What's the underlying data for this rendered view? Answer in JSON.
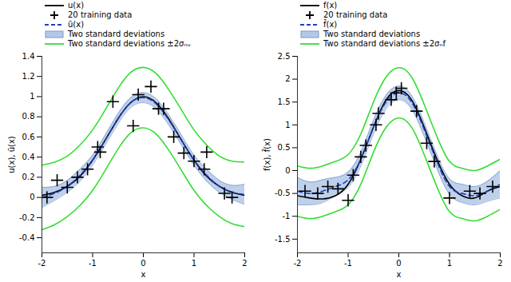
{
  "chart_data": [
    {
      "type": "line",
      "xlabel": "x",
      "ylabel": "u(x), ū(x)",
      "xlim": [
        -2,
        2
      ],
      "xticks": [
        -2,
        -1,
        0,
        1,
        2
      ],
      "ylim": [
        -0.55,
        1.4
      ],
      "yticks": [
        -0.4,
        -0.2,
        0,
        0.2,
        0.4,
        0.6,
        0.8,
        1,
        1.2,
        1.4
      ],
      "x": [
        -2,
        -1.75,
        -1.5,
        -1.25,
        -1,
        -0.75,
        -0.5,
        -0.25,
        0,
        0.25,
        0.5,
        0.75,
        1,
        1.25,
        1.5,
        1.75,
        2
      ],
      "series": [
        {
          "name": "u(x)",
          "type": "line",
          "color": "#000000",
          "line_style": "solid",
          "values": [
            0.02,
            0.05,
            0.11,
            0.21,
            0.37,
            0.57,
            0.78,
            0.94,
            1.0,
            0.94,
            0.78,
            0.57,
            0.37,
            0.21,
            0.11,
            0.05,
            0.02
          ]
        },
        {
          "name": "20 training data",
          "type": "scatter",
          "color": "#000000",
          "marker": "plus",
          "x": [
            -1.9,
            -1.7,
            -1.5,
            -1.3,
            -1.1,
            -0.9,
            -0.85,
            -0.6,
            -0.2,
            -0.1,
            0.15,
            0.3,
            0.4,
            0.6,
            0.8,
            1.0,
            1.25,
            1.2,
            1.6,
            1.75
          ],
          "values": [
            0.0,
            0.17,
            0.1,
            0.2,
            0.28,
            0.5,
            0.45,
            0.95,
            0.71,
            1.02,
            1.1,
            0.88,
            0.88,
            0.6,
            0.44,
            0.36,
            0.45,
            0.28,
            0.04,
            0.0
          ]
        },
        {
          "name": "ū(x)",
          "type": "line",
          "color": "#1f3fbf",
          "line_style": "dashed",
          "values": [
            0.0,
            0.04,
            0.11,
            0.22,
            0.37,
            0.57,
            0.78,
            0.94,
            0.99,
            0.93,
            0.77,
            0.57,
            0.37,
            0.22,
            0.11,
            0.05,
            0.03
          ]
        },
        {
          "name": "Two standard deviations",
          "type": "area",
          "color": "#b3c8e6",
          "lower": [
            -0.1,
            -0.03,
            0.05,
            0.16,
            0.32,
            0.52,
            0.73,
            0.89,
            0.94,
            0.88,
            0.72,
            0.52,
            0.32,
            0.16,
            0.05,
            -0.02,
            -0.07
          ],
          "upper": [
            0.1,
            0.11,
            0.17,
            0.28,
            0.42,
            0.62,
            0.83,
            0.99,
            1.04,
            0.98,
            0.82,
            0.62,
            0.42,
            0.28,
            0.17,
            0.12,
            0.13
          ]
        },
        {
          "name": "Two standard deviations ±2σₙᵤ",
          "type": "bounds",
          "color": "#33dd33",
          "lower": [
            -0.32,
            -0.27,
            -0.19,
            -0.08,
            0.07,
            0.27,
            0.48,
            0.64,
            0.69,
            0.63,
            0.47,
            0.27,
            0.07,
            -0.08,
            -0.19,
            -0.26,
            -0.29
          ],
          "upper": [
            0.32,
            0.35,
            0.41,
            0.52,
            0.67,
            0.87,
            1.08,
            1.24,
            1.29,
            1.23,
            1.07,
            0.87,
            0.67,
            0.52,
            0.41,
            0.36,
            0.35
          ]
        }
      ]
    },
    {
      "type": "line",
      "xlabel": "x",
      "ylabel": "f(x), f̄(x)",
      "xlim": [
        -2,
        2
      ],
      "xticks": [
        -2,
        -1,
        0,
        1,
        2
      ],
      "ylim": [
        -1.8,
        2.5
      ],
      "yticks": [
        -1.5,
        -1,
        -0.5,
        0,
        0.5,
        1,
        1.5,
        2,
        2.5
      ],
      "x": [
        -2,
        -1.75,
        -1.5,
        -1.25,
        -1,
        -0.75,
        -0.5,
        -0.25,
        0,
        0.25,
        0.5,
        0.75,
        1,
        1.25,
        1.5,
        1.75,
        2
      ],
      "series": [
        {
          "name": "f(x)",
          "type": "line",
          "color": "#000000",
          "line_style": "solid",
          "values": [
            -0.55,
            -0.6,
            -0.62,
            -0.55,
            -0.3,
            0.25,
            0.95,
            1.55,
            1.75,
            1.55,
            0.95,
            0.25,
            -0.3,
            -0.55,
            -0.6,
            -0.45,
            -0.35
          ]
        },
        {
          "name": "20 training data",
          "type": "scatter",
          "color": "#000000",
          "marker": "plus",
          "x": [
            -1.85,
            -1.6,
            -1.4,
            -1.2,
            -1.0,
            -0.9,
            -0.75,
            -0.65,
            -0.45,
            -0.4,
            -0.15,
            -0.05,
            0.05,
            0.35,
            0.55,
            0.7,
            1.0,
            1.4,
            1.6,
            1.85
          ],
          "values": [
            -0.45,
            -0.5,
            -0.35,
            -0.4,
            -0.65,
            -0.1,
            0.3,
            0.55,
            1.0,
            1.25,
            1.55,
            1.7,
            1.8,
            1.3,
            0.6,
            0.2,
            -0.6,
            -0.45,
            -0.5,
            -0.35
          ]
        },
        {
          "name": "f̄(x)",
          "type": "line",
          "color": "#1f3fbf",
          "line_style": "dashed",
          "values": [
            -0.45,
            -0.5,
            -0.45,
            -0.35,
            -0.2,
            0.25,
            0.95,
            1.5,
            1.7,
            1.5,
            0.9,
            0.2,
            -0.35,
            -0.5,
            -0.55,
            -0.45,
            -0.3
          ]
        },
        {
          "name": "Two standard deviations",
          "type": "area",
          "color": "#b3c8e6",
          "lower": [
            -0.75,
            -0.75,
            -0.7,
            -0.55,
            -0.37,
            0.1,
            0.8,
            1.35,
            1.55,
            1.35,
            0.75,
            0.05,
            -0.52,
            -0.7,
            -0.75,
            -0.67,
            -0.6
          ],
          "upper": [
            -0.15,
            -0.25,
            -0.2,
            -0.15,
            -0.03,
            0.4,
            1.1,
            1.65,
            1.85,
            1.65,
            1.05,
            0.35,
            -0.18,
            -0.3,
            -0.35,
            -0.23,
            0.0
          ]
        },
        {
          "name": "Two standard deviations ±2σₙf",
          "type": "bounds",
          "color": "#33dd33",
          "lower": [
            -1.0,
            -1.05,
            -1.0,
            -0.9,
            -0.75,
            -0.3,
            0.4,
            0.95,
            1.15,
            0.95,
            0.35,
            -0.35,
            -0.9,
            -1.05,
            -1.1,
            -1.0,
            -0.85
          ],
          "upper": [
            0.1,
            0.05,
            0.1,
            0.2,
            0.35,
            0.8,
            1.5,
            2.05,
            2.25,
            2.05,
            1.45,
            0.75,
            0.2,
            0.05,
            0.0,
            0.1,
            0.25
          ]
        }
      ]
    }
  ]
}
